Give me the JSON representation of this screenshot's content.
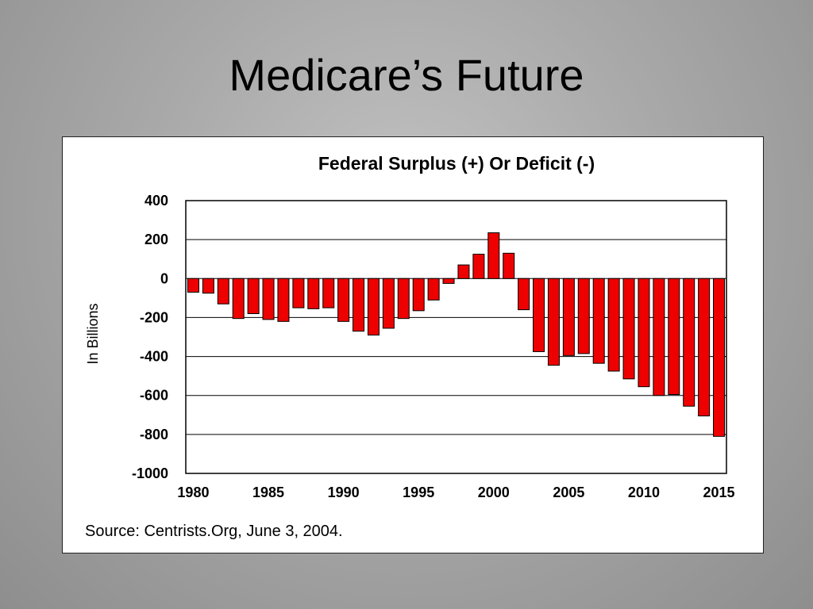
{
  "slide": {
    "title": "Medicare’s Future"
  },
  "chart_data": {
    "type": "bar",
    "title": "Federal Surplus (+) Or Deficit (-)",
    "xlabel": "",
    "ylabel": "In Billions",
    "source": "Source:   Centrists.Org, June 3, 2004.",
    "ylim": [
      -1000,
      400
    ],
    "yticks": [
      400,
      200,
      0,
      -200,
      -400,
      -600,
      -800,
      -1000
    ],
    "ytick_labels": [
      "400",
      "200",
      "0",
      "-200",
      "-400",
      "-600",
      "-800",
      "-1000"
    ],
    "xtick_labels": [
      "1980",
      "1985",
      "1990",
      "1995",
      "2000",
      "2005",
      "2010",
      "2015"
    ],
    "grid": true,
    "bar_color": "#ee0000",
    "categories": [
      1980,
      1981,
      1982,
      1983,
      1984,
      1985,
      1986,
      1987,
      1988,
      1989,
      1990,
      1991,
      1992,
      1993,
      1994,
      1995,
      1996,
      1997,
      1998,
      1999,
      2000,
      2001,
      2002,
      2003,
      2004,
      2005,
      2006,
      2007,
      2008,
      2009,
      2010,
      2011,
      2012,
      2013,
      2014,
      2015
    ],
    "values": [
      -70,
      -75,
      -130,
      -205,
      -180,
      -210,
      -220,
      -150,
      -155,
      -150,
      -220,
      -270,
      -290,
      -255,
      -205,
      -165,
      -110,
      -25,
      70,
      125,
      235,
      130,
      -160,
      -375,
      -445,
      -395,
      -385,
      -435,
      -475,
      -515,
      -555,
      -600,
      -595,
      -655,
      -705,
      -810
    ]
  }
}
